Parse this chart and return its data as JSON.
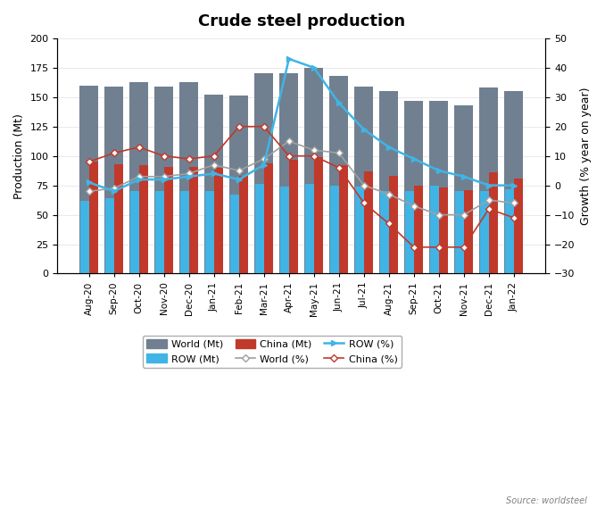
{
  "title": "Crude steel production",
  "ylabel_left": "Production (Mt)",
  "ylabel_right": "Growth (% year on year)",
  "source": "Source: worldsteel",
  "categories": [
    "Aug-20",
    "Sep-20",
    "Oct-20",
    "Nov-20",
    "Dec-20",
    "Jan-21",
    "Feb-21",
    "Mar-21",
    "Apr-21",
    "May-21",
    "Jun-21",
    "Jul-21",
    "Aug-21",
    "Sep-21",
    "Oct-21",
    "Nov-21",
    "Dec-21",
    "Jan-22"
  ],
  "world_mt": [
    160,
    159,
    163,
    159,
    163,
    152,
    151,
    170,
    170,
    175,
    168,
    159,
    155,
    147,
    147,
    143,
    158,
    155
  ],
  "row_mt": [
    62,
    64,
    70,
    70,
    70,
    70,
    67,
    76,
    74,
    76,
    75,
    74,
    70,
    70,
    75,
    70,
    70,
    72
  ],
  "china_mt": [
    95,
    93,
    92,
    91,
    91,
    90,
    83,
    94,
    97,
    99,
    92,
    87,
    83,
    75,
    73,
    71,
    86,
    81
  ],
  "world_pct": [
    -2,
    -1,
    3,
    3,
    4,
    7,
    5,
    9,
    15,
    12,
    11,
    0,
    -3,
    -7,
    -10,
    -10,
    -5,
    -6
  ],
  "row_pct": [
    1,
    -2,
    2,
    2,
    3,
    4,
    2,
    7,
    43,
    40,
    28,
    19,
    13,
    9,
    5,
    3,
    0,
    0
  ],
  "china_pct": [
    8,
    11,
    13,
    10,
    9,
    10,
    20,
    20,
    10,
    10,
    6,
    -6,
    -13,
    -21,
    -21,
    -21,
    -8,
    -11
  ],
  "color_world_bar": "#708090",
  "color_row_bar": "#40b4e5",
  "color_china_bar": "#c0392b",
  "color_world_line": "#a0a0a0",
  "color_row_line": "#40b4e5",
  "color_china_line": "#c0392b",
  "ylim_left": [
    0,
    200
  ],
  "ylim_right": [
    -30,
    50
  ],
  "yticks_left": [
    0,
    25,
    50,
    75,
    100,
    125,
    150,
    175,
    200
  ],
  "yticks_right": [
    -30,
    -20,
    -10,
    0,
    10,
    20,
    30,
    40,
    50
  ]
}
